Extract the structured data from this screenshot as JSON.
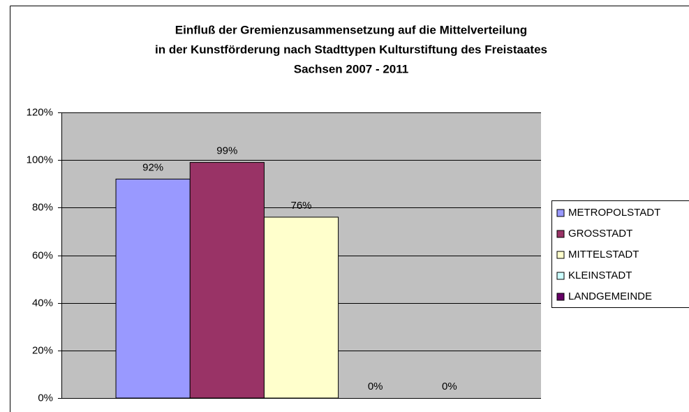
{
  "chart_data": {
    "type": "bar",
    "title": [
      "Einfluß der Gremienzusammensetzung auf die Mittelverteilung",
      "in der Kunstförderung nach Stadttypen  Kulturstiftung des Freistaates",
      "Sachsen 2007 - 2011"
    ],
    "categories": [
      null
    ],
    "series": [
      {
        "name": "METROPOLSTADT",
        "color": "#9999FF",
        "values": [
          92
        ],
        "value_labels": [
          "92%"
        ]
      },
      {
        "name": "GROSSTADT",
        "color": "#993366",
        "values": [
          99
        ],
        "value_labels": [
          "99%"
        ]
      },
      {
        "name": "MITTELSTADT",
        "color": "#FFFFCC",
        "values": [
          76
        ],
        "value_labels": [
          "76%"
        ]
      },
      {
        "name": "KLEINSTADT",
        "color": "#CCFFFF",
        "values": [
          0
        ],
        "value_labels": [
          "0%"
        ]
      },
      {
        "name": "LANDGEMEINDE",
        "color": "#660066",
        "values": [
          0
        ],
        "value_labels": [
          "0%"
        ]
      }
    ],
    "ylim": [
      0,
      120
    ],
    "yticks": [
      {
        "value": 0,
        "label": "0%"
      },
      {
        "value": 20,
        "label": "20%"
      },
      {
        "value": 40,
        "label": "40%"
      },
      {
        "value": 60,
        "label": "60%"
      },
      {
        "value": 80,
        "label": "80%"
      },
      {
        "value": 100,
        "label": "100%"
      },
      {
        "value": 120,
        "label": "120%"
      }
    ],
    "grid": true,
    "legend": "right"
  }
}
